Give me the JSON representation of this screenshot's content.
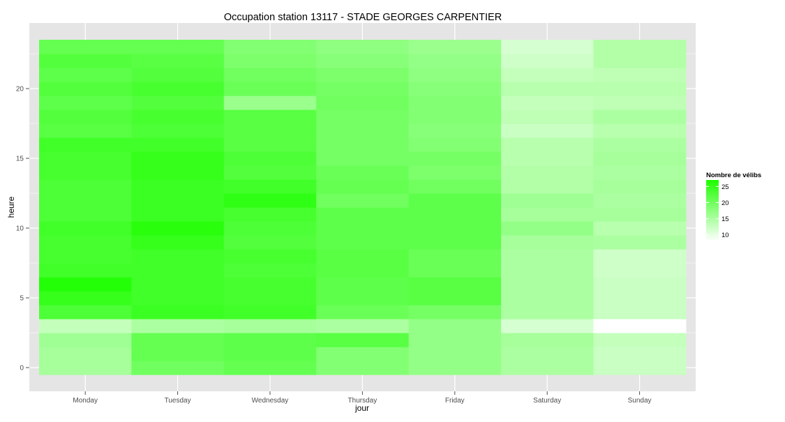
{
  "chart_data": {
    "type": "heatmap",
    "title": "Occupation station 13117 - STADE GEORGES CARPENTIER",
    "xlabel": "jour",
    "ylabel": "heure",
    "categories": [
      "Monday",
      "Tuesday",
      "Wednesday",
      "Thursday",
      "Friday",
      "Saturday",
      "Sunday"
    ],
    "hours": [
      0,
      1,
      2,
      3,
      4,
      5,
      6,
      7,
      8,
      9,
      10,
      11,
      12,
      13,
      14,
      15,
      16,
      17,
      18,
      19,
      20,
      21,
      22,
      23
    ],
    "y_ticks": [
      0,
      5,
      10,
      15,
      20
    ],
    "ylim": [
      -0.5,
      23.5
    ],
    "grid": true,
    "legend": {
      "title": "Nombre de vélibs",
      "position": "right",
      "ticks": [
        10,
        15,
        20,
        25
      ],
      "range": [
        8,
        27
      ],
      "low_color": "#ffffff",
      "high_color": "#1dff00"
    },
    "panel_color": "#e5e5e5",
    "grid_color": "#ffffff",
    "values": [
      [
        15.5,
        15.5,
        16.0,
        13.0,
        23.0,
        25.0,
        26.5,
        24.0,
        23.5,
        23.5,
        24.0,
        23.0,
        23.0,
        23.0,
        23.5,
        23.5,
        24.0,
        22.0,
        22.5,
        21.5,
        22.5,
        21.5,
        22.5,
        21.0
      ],
      [
        20.0,
        21.0,
        21.0,
        15.0,
        24.5,
        24.0,
        24.0,
        24.0,
        24.0,
        25.0,
        26.0,
        24.5,
        24.5,
        24.5,
        25.0,
        25.0,
        24.0,
        23.0,
        23.5,
        22.5,
        23.5,
        22.5,
        22.0,
        21.0
      ],
      [
        21.0,
        21.5,
        21.5,
        15.5,
        24.0,
        23.5,
        23.5,
        23.0,
        23.5,
        22.5,
        23.0,
        23.5,
        25.5,
        24.0,
        22.5,
        23.0,
        22.0,
        22.0,
        22.0,
        16.5,
        20.5,
        20.0,
        19.0,
        18.5
      ],
      [
        18.5,
        18.5,
        22.0,
        15.0,
        20.5,
        21.5,
        21.5,
        22.0,
        22.0,
        21.5,
        21.5,
        21.5,
        20.0,
        21.0,
        20.5,
        19.5,
        19.5,
        19.5,
        19.5,
        20.0,
        19.5,
        19.0,
        18.0,
        17.5
      ],
      [
        17.0,
        17.0,
        17.0,
        17.0,
        19.5,
        22.0,
        22.0,
        20.5,
        20.5,
        21.5,
        21.5,
        21.5,
        21.5,
        20.0,
        19.0,
        19.5,
        18.5,
        18.0,
        18.5,
        18.5,
        18.0,
        17.5,
        17.0,
        16.5
      ],
      [
        15.0,
        15.0,
        15.5,
        11.5,
        15.0,
        15.0,
        15.0,
        15.0,
        15.0,
        15.5,
        17.0,
        15.5,
        16.0,
        14.5,
        14.5,
        14.0,
        14.0,
        12.5,
        13.5,
        13.0,
        14.0,
        13.0,
        12.0,
        11.5
      ],
      [
        12.5,
        12.5,
        13.0,
        8.0,
        12.5,
        12.5,
        12.5,
        12.0,
        12.0,
        15.0,
        14.0,
        15.5,
        15.0,
        15.5,
        15.0,
        15.5,
        15.0,
        14.0,
        15.0,
        13.5,
        14.0,
        13.5,
        14.5,
        14.5
      ]
    ]
  }
}
